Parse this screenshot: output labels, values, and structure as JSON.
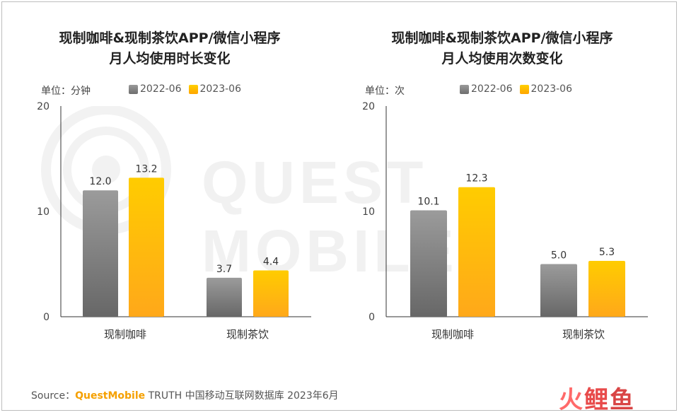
{
  "chart_data": [
    {
      "type": "bar",
      "title_line1": "现制咖啡&现制茶饮APP/微信小程序",
      "title_line2": "月人均使用时长变化",
      "unit": "单位：分钟",
      "categories": [
        "现制咖啡",
        "现制茶饮"
      ],
      "series": [
        {
          "name": "2022-06",
          "values": [
            12.0,
            3.7
          ],
          "color": "#8a8a8a"
        },
        {
          "name": "2023-06",
          "values": [
            13.2,
            4.4
          ],
          "color": "#ffb400"
        }
      ],
      "ylim": [
        0,
        20
      ],
      "yticks": [
        "0",
        "10",
        "20"
      ],
      "data_labels": [
        [
          "12.0",
          "3.7"
        ],
        [
          "13.2",
          "4.4"
        ]
      ],
      "legend": "top"
    },
    {
      "type": "bar",
      "title_line1": "现制咖啡&现制茶饮APP/微信小程序",
      "title_line2": "月人均使用次数变化",
      "unit": "单位：次",
      "categories": [
        "现制咖啡",
        "现制茶饮"
      ],
      "series": [
        {
          "name": "2022-06",
          "values": [
            10.1,
            5.0
          ],
          "color": "#8a8a8a"
        },
        {
          "name": "2023-06",
          "values": [
            12.3,
            5.3
          ],
          "color": "#ffb400"
        }
      ],
      "ylim": [
        0,
        20
      ],
      "yticks": [
        "0",
        "10",
        "20"
      ],
      "data_labels": [
        [
          "10.1",
          "5.0"
        ],
        [
          "12.3",
          "5.3"
        ]
      ],
      "legend": "top"
    }
  ],
  "watermark": "QUEST MOBILE",
  "source": {
    "prefix": "Source：",
    "brand": "QuestMobile",
    "rest": " TRUTH 中国移动互联网数据库 2023年6月"
  },
  "logo": {
    "c1": "火",
    "c2": "鲤",
    "c3": "鱼"
  }
}
